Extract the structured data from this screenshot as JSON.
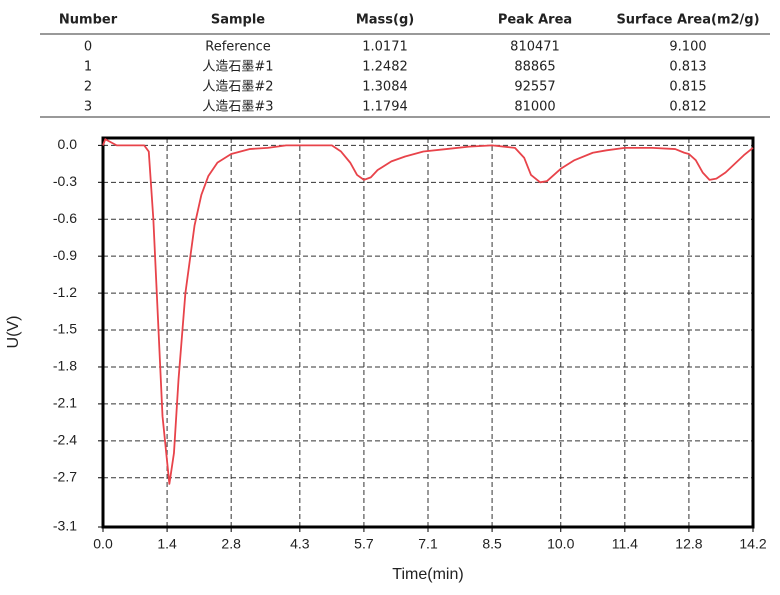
{
  "table": {
    "columns": [
      "Number",
      "Sample",
      "Mass(g)",
      "Peak Area",
      "Surface Area(m2/g)"
    ],
    "rows": [
      [
        "0",
        "Reference",
        "1.0171",
        "810471",
        "9.100"
      ],
      [
        "1",
        "人造石墨#1",
        "1.2482",
        "88865",
        "0.813"
      ],
      [
        "2",
        "人造石墨#2",
        "1.3084",
        "92557",
        "0.815"
      ],
      [
        "3",
        "人造石墨#3",
        "1.1794",
        "81000",
        "0.812"
      ]
    ]
  },
  "chart_data": {
    "type": "line",
    "xlabel": "Time(min)",
    "ylabel": "U(V)",
    "color": "#e8434a",
    "grid": true,
    "x": [
      0,
      0.05,
      0.3,
      0.6,
      0.9,
      1.0,
      1.1,
      1.2,
      1.3,
      1.45,
      1.55,
      1.65,
      1.8,
      2.0,
      2.15,
      2.3,
      2.5,
      2.8,
      3.2,
      3.6,
      4.0,
      4.5,
      5.0,
      5.2,
      5.4,
      5.55,
      5.7,
      5.85,
      6.0,
      6.3,
      6.6,
      7.0,
      7.5,
      8.0,
      8.5,
      9.0,
      9.2,
      9.35,
      9.55,
      9.7,
      9.85,
      10.0,
      10.3,
      10.7,
      11.0,
      11.4,
      12.0,
      12.5,
      12.7,
      12.8,
      12.95,
      13.1,
      13.25,
      13.4,
      13.6,
      13.8,
      14.0,
      14.2
    ],
    "values": [
      0.0,
      0.05,
      0.0,
      0.0,
      0.0,
      -0.05,
      -0.6,
      -1.4,
      -2.2,
      -2.75,
      -2.5,
      -1.9,
      -1.2,
      -0.65,
      -0.4,
      -0.25,
      -0.14,
      -0.07,
      -0.03,
      -0.02,
      0.0,
      0.0,
      0.0,
      -0.05,
      -0.14,
      -0.24,
      -0.28,
      -0.26,
      -0.2,
      -0.13,
      -0.09,
      -0.05,
      -0.03,
      -0.01,
      0.0,
      -0.02,
      -0.1,
      -0.24,
      -0.3,
      -0.29,
      -0.24,
      -0.19,
      -0.12,
      -0.06,
      -0.04,
      -0.02,
      -0.02,
      -0.03,
      -0.06,
      -0.07,
      -0.12,
      -0.22,
      -0.28,
      -0.27,
      -0.22,
      -0.15,
      -0.08,
      -0.02
    ],
    "xlim": [
      0,
      14.2
    ],
    "xticks": [
      {
        "value": 0,
        "label": "0.0"
      },
      1.4,
      2.8,
      4.3,
      5.7,
      7.1,
      8.5,
      {
        "value": 10,
        "label": "10.0"
      },
      11.4,
      12.8,
      14.2
    ],
    "ylim": [
      -3.1,
      0.06
    ],
    "yticks": [
      {
        "value": 0,
        "label": "0.0"
      },
      -0.3,
      -0.6,
      -0.9,
      -1.2,
      -1.5,
      -1.8,
      -2.1,
      -2.4,
      -2.7,
      -3.1
    ]
  }
}
